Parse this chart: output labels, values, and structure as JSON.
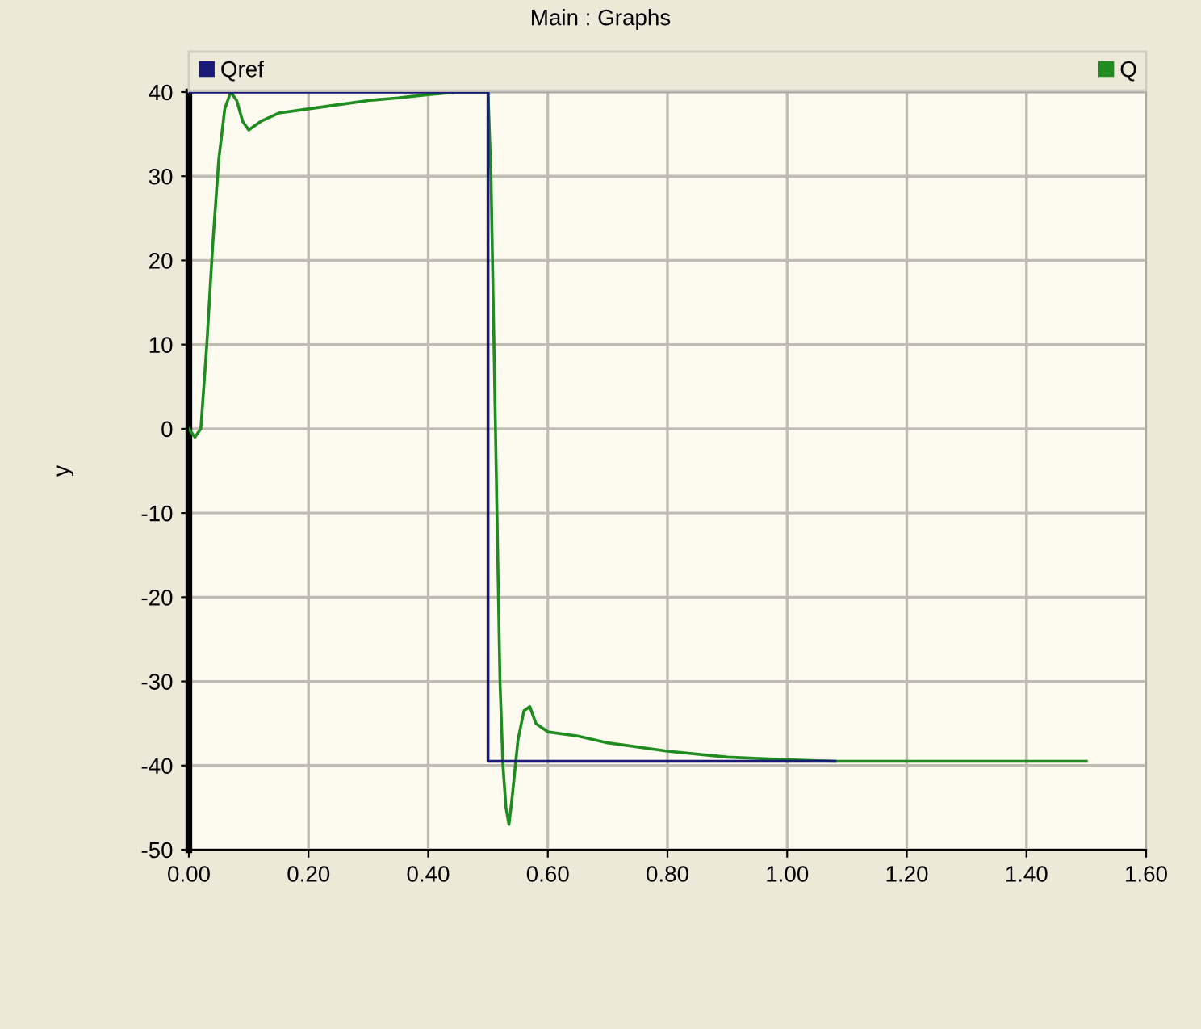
{
  "chart_data": {
    "type": "line",
    "title": "Main : Graphs",
    "ylabel": "y",
    "xlim": [
      0,
      1.6
    ],
    "ylim": [
      -50,
      40
    ],
    "xticks": [
      {
        "value": 0,
        "label": "0.00"
      },
      {
        "value": 0.2,
        "label": "0.20"
      },
      {
        "value": 0.4,
        "label": "0.40"
      },
      {
        "value": 0.6,
        "label": "0.60"
      },
      {
        "value": 0.8,
        "label": "0.80"
      },
      {
        "value": 1.0,
        "label": "1.00"
      },
      {
        "value": 1.2,
        "label": "1.20"
      },
      {
        "value": 1.4,
        "label": "1.40"
      },
      {
        "value": 1.6,
        "label": "1.60"
      }
    ],
    "yticks": [
      -50,
      -40,
      -30,
      -20,
      -10,
      0,
      10,
      20,
      30,
      40
    ],
    "grid": true,
    "legend": "top",
    "marker": "none",
    "line_style": "solid",
    "series": [
      {
        "name": "Qref",
        "color": "#1a1a7a",
        "x": [
          0,
          0.5,
          0.5,
          1.08
        ],
        "values": [
          40,
          40,
          -39.5,
          -39.5
        ]
      },
      {
        "name": "Q",
        "color": "#1e8c1e",
        "x": [
          0,
          0.01,
          0.02,
          0.03,
          0.04,
          0.05,
          0.06,
          0.07,
          0.08,
          0.09,
          0.1,
          0.12,
          0.15,
          0.2,
          0.25,
          0.3,
          0.35,
          0.4,
          0.45,
          0.49,
          0.5,
          0.505,
          0.51,
          0.515,
          0.52,
          0.525,
          0.53,
          0.535,
          0.54,
          0.55,
          0.56,
          0.57,
          0.58,
          0.6,
          0.65,
          0.7,
          0.8,
          0.9,
          1.0,
          1.08,
          1.5
        ],
        "values": [
          0,
          -1,
          0,
          10,
          22,
          32,
          38,
          40,
          39,
          36.5,
          35.5,
          36.5,
          37.5,
          38,
          38.5,
          39,
          39.3,
          39.7,
          40,
          40,
          40,
          30,
          10,
          -10,
          -30,
          -40,
          -45,
          -47,
          -44,
          -37,
          -33.5,
          -33,
          -35,
          -36,
          -36.5,
          -37.3,
          -38.3,
          -39,
          -39.3,
          -39.5,
          -39.5
        ]
      }
    ]
  }
}
